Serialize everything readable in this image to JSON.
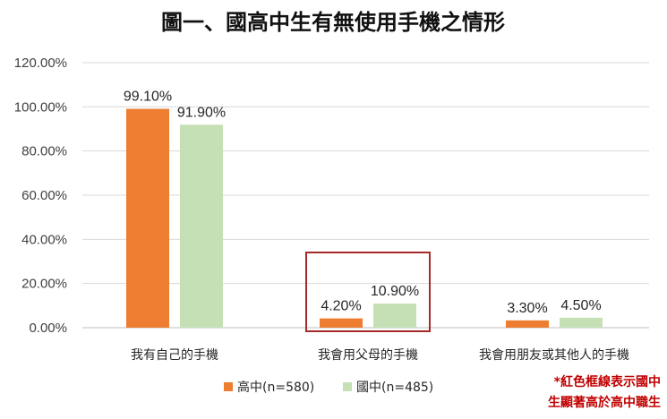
{
  "chart_data": {
    "type": "bar",
    "title": "圖一、國高中生有無使用手機之情形",
    "categories": [
      "我有自己的手機",
      "我會用父母的手機",
      "我會用朋友或其他人的手機"
    ],
    "series": [
      {
        "name": "高中(n=580)",
        "color": "#ED7D31",
        "values": [
          99.1,
          4.2,
          3.3
        ],
        "labels": [
          "99.10%",
          "4.20%",
          "3.30%"
        ]
      },
      {
        "name": "國中(n=485)",
        "color": "#C5E0B4",
        "values": [
          91.9,
          10.9,
          4.5
        ],
        "labels": [
          "91.90%",
          "10.90%",
          "4.50%"
        ]
      }
    ],
    "ylim": [
      0,
      120
    ],
    "yticks": [
      0,
      20,
      40,
      60,
      80,
      100,
      120
    ],
    "ytick_labels": [
      "0.00%",
      "20.00%",
      "40.00%",
      "60.00%",
      "80.00%",
      "100.00%",
      "120.00%"
    ],
    "grid": true,
    "legend": "bottom",
    "highlight_category": 1,
    "highlight_color": "#A52A2A"
  },
  "note": {
    "lines": [
      "*紅色框線表示國中",
      "生顯著高於高中職生"
    ],
    "color": "#C00000"
  }
}
